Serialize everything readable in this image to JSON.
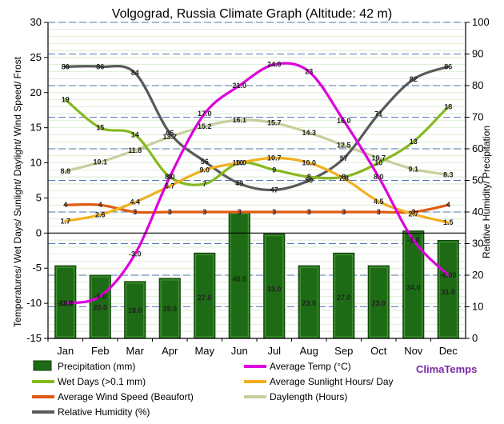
{
  "chart_data": {
    "type": "bar+line",
    "title": "Volgograd, Russia Climate Graph (Altitude: 42 m)",
    "categories": [
      "Jan",
      "Feb",
      "Mar",
      "Apr",
      "May",
      "Jun",
      "Jul",
      "Aug",
      "Sep",
      "Oct",
      "Nov",
      "Dec"
    ],
    "y_left": {
      "label": "Temperatures/ Wet Days/ Sunlight/ Daylight/ Wind Speed/ Frost",
      "range": [
        -15,
        30
      ],
      "ticks": [
        -15,
        -10,
        -5,
        0,
        5,
        10,
        15,
        20,
        25,
        30
      ]
    },
    "y_right": {
      "label": "Relative Humidity/ Precipitation",
      "range": [
        0,
        100
      ],
      "ticks": [
        0,
        10,
        20,
        30,
        40,
        50,
        60,
        70,
        80,
        90,
        100
      ]
    },
    "bars": {
      "name": "Precipitation (mm)",
      "axis": "right",
      "color": "#1d6b14",
      "values": [
        23.0,
        20.0,
        18.0,
        19.0,
        27.0,
        40.0,
        33.0,
        23.0,
        27.0,
        23.0,
        34.0,
        31.0
      ],
      "labels": [
        "23.0",
        "20.0",
        "18.0",
        "19.0",
        "27.0",
        "40.0",
        "33.0",
        "23.0",
        "27.0",
        "23.0",
        "34.0",
        "31.0"
      ]
    },
    "series": [
      {
        "name": "Average Temp (°C)",
        "axis": "left",
        "color": "#dd00dd",
        "values": [
          -10.0,
          -9.0,
          -3.0,
          8.0,
          17.0,
          21.0,
          24.0,
          23.0,
          16.0,
          8.0,
          -1.0,
          -6.0
        ],
        "labels": [
          "-10.0",
          "-9.0",
          "-3.0",
          "8.0",
          "17.0",
          "21.0",
          "24.0",
          "23",
          "16.0",
          "8.0",
          "-1.0",
          "-6.00"
        ]
      },
      {
        "name": "Wet Days (>0.1 mm)",
        "axis": "left",
        "color": "#86b820",
        "values": [
          19,
          15,
          14,
          8,
          7,
          10,
          9,
          8,
          8,
          10,
          13,
          18
        ],
        "labels": [
          "19",
          "15",
          "14",
          "8",
          "7",
          "10",
          "9",
          "8",
          "8",
          "10",
          "13",
          "18"
        ]
      },
      {
        "name": "Average Sunlight Hours/ Day",
        "axis": "left",
        "color": "#f0b020",
        "values": [
          1.7,
          2.6,
          4.4,
          6.7,
          9.0,
          10.0,
          10.7,
          10.0,
          7.8,
          4.5,
          2.7,
          1.5
        ],
        "labels": [
          "1.7",
          "2.6",
          "4.4",
          "6.7",
          "9.0",
          "10.0",
          "10.7",
          "10.0",
          "7.8",
          "4.5",
          "2.7",
          "1.5"
        ]
      },
      {
        "name": "Average Wind Speed (Beaufort)",
        "axis": "left",
        "color": "#e05a10",
        "values": [
          4,
          4,
          3,
          3,
          3,
          3,
          3,
          3,
          3,
          3,
          3,
          4
        ],
        "labels": [
          "4",
          "4",
          "3",
          "3",
          "3",
          "3",
          "3",
          "3",
          "3",
          "3",
          "3",
          "4"
        ]
      },
      {
        "name": "Daylength (Hours)",
        "axis": "left",
        "color": "#c8cf9c",
        "values": [
          8.8,
          10.1,
          11.8,
          13.7,
          15.2,
          16.1,
          15.7,
          14.3,
          12.5,
          10.7,
          9.1,
          8.3
        ],
        "labels": [
          "8.8",
          "10.1",
          "11.8",
          "13.7",
          "15.2",
          "16.1",
          "15.7",
          "14.3",
          "12.5",
          "10.7",
          "9.1",
          "8.3"
        ]
      },
      {
        "name": "Relative Humidity (%)",
        "axis": "right",
        "color": "#5a5a5a",
        "values": [
          86,
          86,
          84,
          65,
          56,
          49,
          47,
          50,
          57,
          71,
          82,
          86
        ],
        "labels": [
          "86",
          "86",
          "84",
          "65",
          "56",
          "49",
          "47",
          "50",
          "57",
          "71",
          "82",
          "86"
        ]
      }
    ],
    "legend": {
      "placement": "bottom",
      "items": [
        {
          "label": "Precipitation (mm)",
          "kind": "box",
          "color": "#1d6b14"
        },
        {
          "label": "Average Temp (°C)",
          "kind": "line",
          "color": "#dd00dd"
        },
        {
          "label": "Wet Days (>0.1 mm)",
          "kind": "line",
          "color": "#86b820"
        },
        {
          "label": "Average Sunlight Hours/ Day",
          "kind": "line",
          "color": "#f0b020"
        },
        {
          "label": "Average Wind Speed (Beaufort)",
          "kind": "line",
          "color": "#e05a10"
        },
        {
          "label": "Daylength (Hours)",
          "kind": "line",
          "color": "#c8cf9c"
        },
        {
          "label": "Relative Humidity (%)",
          "kind": "line",
          "color": "#5a5a5a"
        }
      ]
    },
    "brand": {
      "text": "ClimaTemps",
      "color": "#7a2aa6"
    },
    "grid": true
  }
}
